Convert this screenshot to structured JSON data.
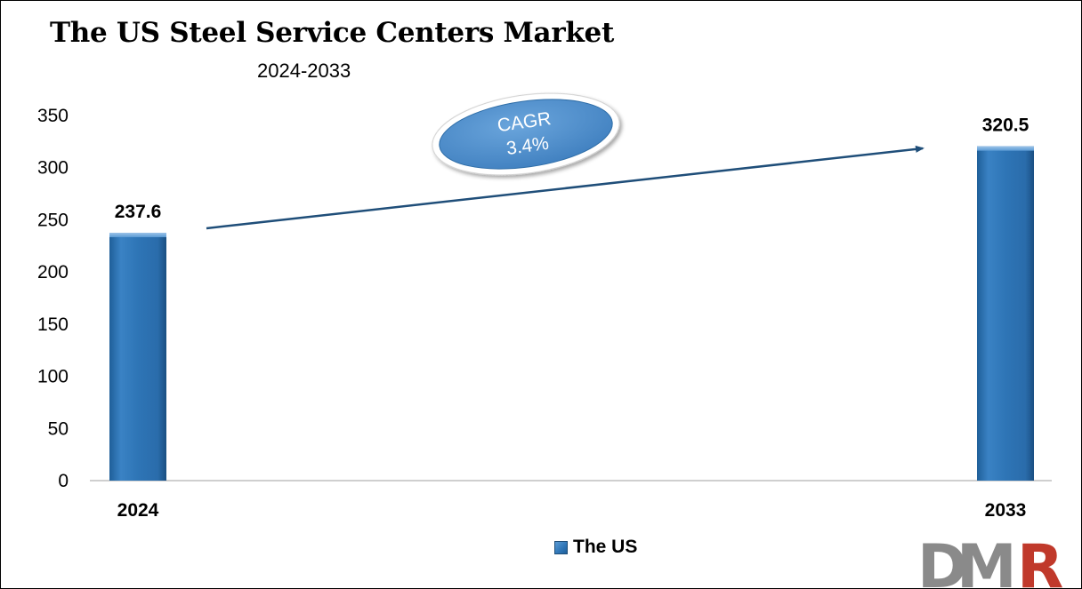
{
  "chart_data": {
    "type": "bar",
    "title": "The US Steel Service Centers Market",
    "subtitle": "2024-2033",
    "categories": [
      "2024",
      "2033"
    ],
    "series": [
      {
        "name": "The US",
        "values": [
          237.6,
          320.5
        ],
        "data_labels": [
          "237.6",
          "320.5"
        ]
      }
    ],
    "ylim": [
      0,
      350
    ],
    "y_ticks": [
      0,
      50,
      100,
      150,
      200,
      250,
      300,
      350
    ],
    "y_tick_labels": [
      "0",
      "50",
      "100",
      "150",
      "200",
      "250",
      "300",
      "350"
    ],
    "grid": false,
    "legend_position": "bottom-center",
    "annotation": {
      "title": "CAGR",
      "value": "3.4%"
    },
    "colors": {
      "bar": "#2e75b6",
      "bar_dark": "#1f5f99",
      "bar_light": "#5b9bd5",
      "arrow": "#1f4e79"
    }
  },
  "logo": {
    "text": "DMR",
    "letters": [
      "D",
      "M",
      "R"
    ],
    "colors": [
      "#8a8a8a",
      "#8a8a8a",
      "#c0392b"
    ]
  }
}
